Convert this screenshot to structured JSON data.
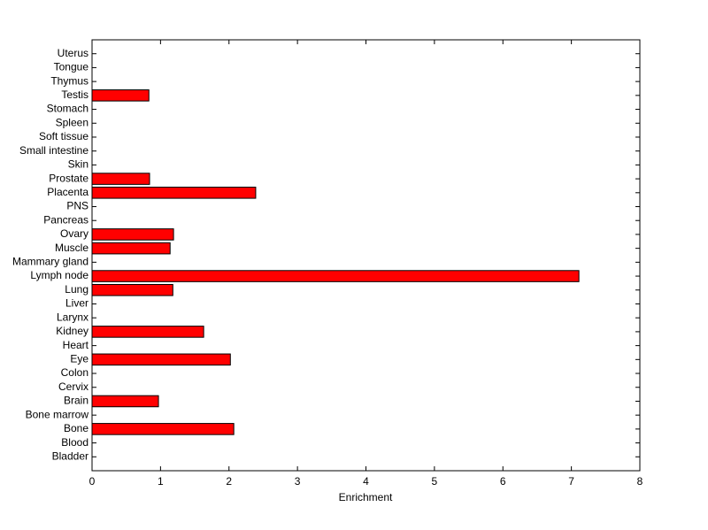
{
  "chart_data": {
    "type": "barh",
    "xlabel": "Enrichment",
    "categories": [
      "Bladder",
      "Blood",
      "Bone",
      "Bone marrow",
      "Brain",
      "Cervix",
      "Colon",
      "Eye",
      "Heart",
      "Kidney",
      "Larynx",
      "Liver",
      "Lung",
      "Lymph node",
      "Mammary gland",
      "Muscle",
      "Ovary",
      "Pancreas",
      "PNS",
      "Placenta",
      "Prostate",
      "Skin",
      "Small intestine",
      "Soft tissue",
      "Spleen",
      "Stomach",
      "Testis",
      "Thymus",
      "Tongue",
      "Uterus"
    ],
    "values": [
      0,
      0,
      2.07,
      0,
      0.97,
      0,
      0,
      2.02,
      0,
      1.63,
      0,
      0,
      1.18,
      7.11,
      0,
      1.14,
      1.19,
      0,
      0,
      2.39,
      0.84,
      0,
      0,
      0,
      0,
      0,
      0.83,
      0,
      0,
      0
    ],
    "color": "#ff0000",
    "xlim": [
      0,
      8
    ],
    "xticks": [
      0,
      1,
      2,
      3,
      4,
      5,
      6,
      7,
      8
    ]
  }
}
